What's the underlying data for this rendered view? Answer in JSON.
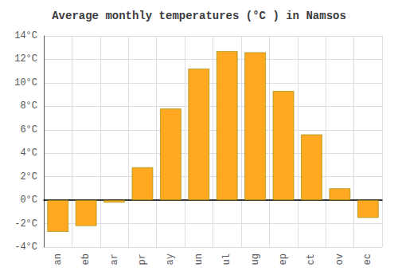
{
  "chart_data": {
    "type": "bar",
    "title": "Average monthly temperatures (°C ) in Namsos",
    "categories": [
      "an",
      "eb",
      "ar",
      "pr",
      "ay",
      "un",
      "ul",
      "ug",
      "ep",
      "ct",
      "ov",
      "ec"
    ],
    "values": [
      -2.7,
      -2.2,
      -0.2,
      2.8,
      7.8,
      11.2,
      12.7,
      12.6,
      9.3,
      5.6,
      1.0,
      -1.5
    ],
    "color": "#FFA820",
    "ylim": [
      -4,
      14
    ],
    "yticks": [
      {
        "value": -4,
        "label": "-4°C"
      },
      {
        "value": -2,
        "label": "-2°C"
      },
      {
        "value": 0,
        "label": "0°C"
      },
      {
        "value": 2,
        "label": "2°C"
      },
      {
        "value": 4,
        "label": "4°C"
      },
      {
        "value": 6,
        "label": "6°C"
      },
      {
        "value": 8,
        "label": "8°C"
      },
      {
        "value": 10,
        "label": "10°C"
      },
      {
        "value": 12,
        "label": "12°C"
      },
      {
        "value": 14,
        "label": "14°C"
      }
    ],
    "grid": true
  }
}
